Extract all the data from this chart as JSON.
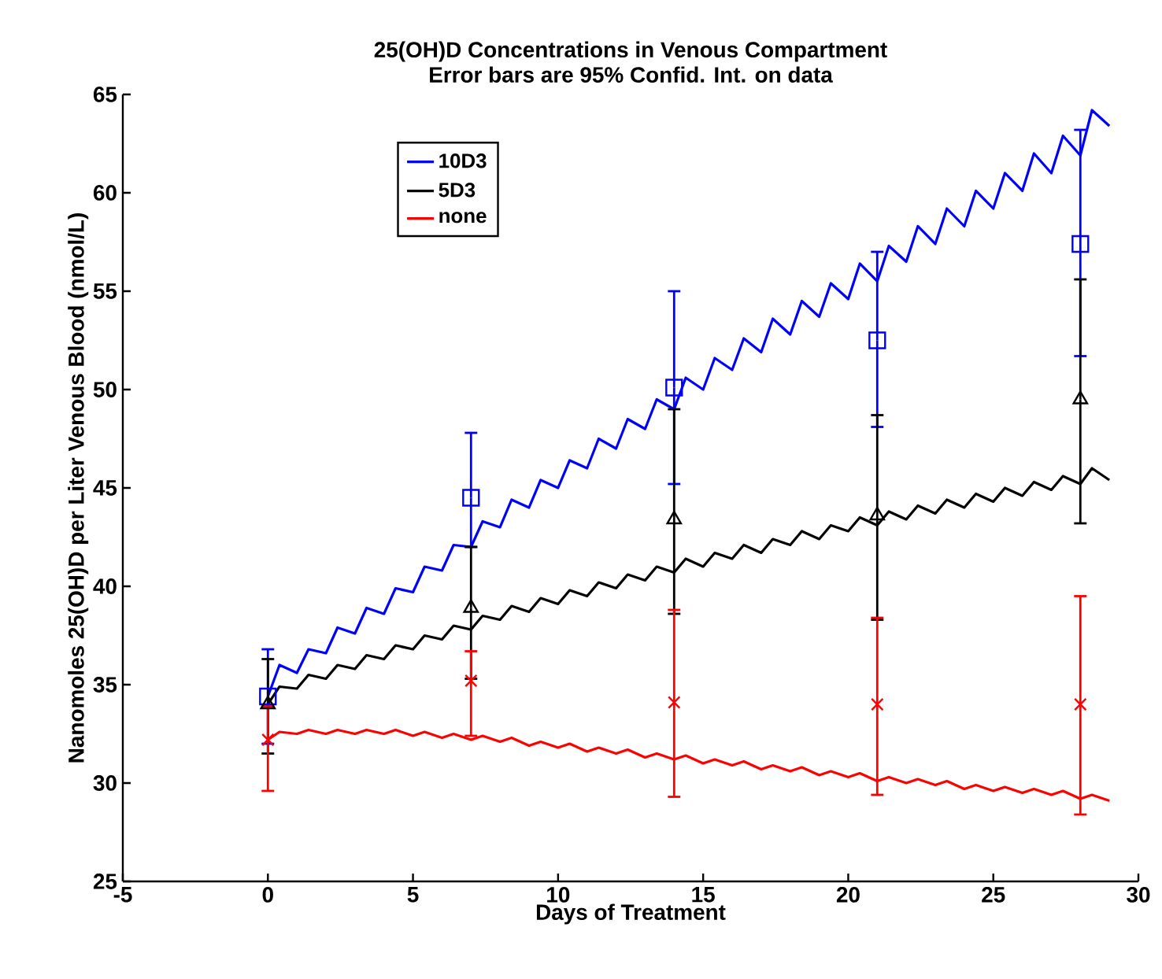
{
  "chart_data": {
    "type": "line",
    "title": "25(OH)D Concentrations in Venous Compartment",
    "subtitle": "Error bars are 95% Confid. Int. on data",
    "xlabel": "Days of Treatment",
    "ylabel": "Nanomoles 25(OH)D per Liter Venous Blood (nmol/L)",
    "xlim": [
      -5,
      30
    ],
    "xticks": [
      -5,
      0,
      5,
      10,
      15,
      20,
      25,
      30
    ],
    "ylim": [
      25,
      65
    ],
    "yticks": [
      25,
      30,
      35,
      40,
      45,
      50,
      55,
      60,
      65
    ],
    "grid": false,
    "legend": "top left",
    "line_style": "solid",
    "series": [
      {
        "name": "10D3",
        "color": "#0000ff",
        "x": [
          0,
          0.4,
          1,
          1.4,
          2,
          2.4,
          3,
          3.4,
          4,
          4.4,
          5,
          5.4,
          6,
          6.4,
          7,
          7.4,
          8,
          8.4,
          9,
          9.4,
          10,
          10.4,
          11,
          11.4,
          12,
          12.4,
          13,
          13.4,
          14,
          14.4,
          15,
          15.4,
          16,
          16.4,
          17,
          17.4,
          18,
          18.4,
          19,
          19.4,
          20,
          20.4,
          21,
          21.4,
          22,
          22.4,
          23,
          23.4,
          24,
          24.4,
          25,
          25.4,
          26,
          26.4,
          27,
          27.4,
          28,
          28.4,
          29
        ],
        "values": [
          34.4,
          36.0,
          35.6,
          36.8,
          36.6,
          37.9,
          37.6,
          38.9,
          38.6,
          39.9,
          39.7,
          41.0,
          40.8,
          42.1,
          42.0,
          43.3,
          43.0,
          44.4,
          44.0,
          45.4,
          45.0,
          46.4,
          46.0,
          47.5,
          47.0,
          48.5,
          48.0,
          49.5,
          49.0,
          50.6,
          50.0,
          51.6,
          51.0,
          52.6,
          51.9,
          53.6,
          52.8,
          54.5,
          53.7,
          55.4,
          54.6,
          56.4,
          55.5,
          57.3,
          56.5,
          58.3,
          57.4,
          59.2,
          58.3,
          60.1,
          59.2,
          61.0,
          60.1,
          62.0,
          61.0,
          62.9,
          61.9,
          64.2,
          63.4
        ]
      },
      {
        "name": "5D3",
        "color": "#000000",
        "x": [
          0,
          0.4,
          1,
          1.4,
          2,
          2.4,
          3,
          3.4,
          4,
          4.4,
          5,
          5.4,
          6,
          6.4,
          7,
          7.4,
          8,
          8.4,
          9,
          9.4,
          10,
          10.4,
          11,
          11.4,
          12,
          12.4,
          13,
          13.4,
          14,
          14.4,
          15,
          15.4,
          16,
          16.4,
          17,
          17.4,
          18,
          18.4,
          19,
          19.4,
          20,
          20.4,
          21,
          21.4,
          22,
          22.4,
          23,
          23.4,
          24,
          24.4,
          25,
          25.4,
          26,
          26.4,
          27,
          27.4,
          28,
          28.4,
          29
        ],
        "values": [
          34.0,
          34.9,
          34.8,
          35.5,
          35.3,
          36.0,
          35.8,
          36.5,
          36.3,
          37.0,
          36.8,
          37.5,
          37.3,
          38.0,
          37.8,
          38.5,
          38.3,
          39.0,
          38.7,
          39.4,
          39.1,
          39.8,
          39.5,
          40.2,
          39.9,
          40.6,
          40.3,
          41.0,
          40.7,
          41.4,
          41.0,
          41.7,
          41.4,
          42.1,
          41.7,
          42.4,
          42.1,
          42.8,
          42.4,
          43.1,
          42.8,
          43.5,
          43.1,
          43.8,
          43.4,
          44.1,
          43.7,
          44.4,
          44.0,
          44.7,
          44.3,
          45.0,
          44.6,
          45.3,
          44.9,
          45.6,
          45.2,
          46.0,
          45.4
        ]
      },
      {
        "name": "none",
        "color": "#ff0000",
        "x": [
          0,
          0.4,
          1,
          1.4,
          2,
          2.4,
          3,
          3.4,
          4,
          4.4,
          5,
          5.4,
          6,
          6.4,
          7,
          7.4,
          8,
          8.4,
          9,
          9.4,
          10,
          10.4,
          11,
          11.4,
          12,
          12.4,
          13,
          13.4,
          14,
          14.4,
          15,
          15.4,
          16,
          16.4,
          17,
          17.4,
          18,
          18.4,
          19,
          19.4,
          20,
          20.4,
          21,
          21.4,
          22,
          22.4,
          23,
          23.4,
          24,
          24.4,
          25,
          25.4,
          26,
          26.4,
          27,
          27.4,
          28,
          28.4,
          29
        ],
        "values": [
          32.2,
          32.6,
          32.5,
          32.7,
          32.5,
          32.7,
          32.5,
          32.7,
          32.5,
          32.7,
          32.4,
          32.6,
          32.3,
          32.5,
          32.2,
          32.4,
          32.1,
          32.3,
          31.9,
          32.1,
          31.8,
          32.0,
          31.6,
          31.8,
          31.5,
          31.7,
          31.3,
          31.5,
          31.2,
          31.4,
          31.0,
          31.2,
          30.9,
          31.1,
          30.7,
          30.9,
          30.6,
          30.8,
          30.4,
          30.6,
          30.3,
          30.5,
          30.1,
          30.3,
          30.0,
          30.2,
          29.9,
          30.1,
          29.7,
          29.9,
          29.6,
          29.8,
          29.5,
          29.7,
          29.4,
          29.6,
          29.2,
          29.4,
          29.1
        ]
      },
      {
        "type": "scatter",
        "color": "#0000ff",
        "marker": "square",
        "x": [
          0,
          7,
          14,
          21,
          28
        ],
        "values": [
          34.4,
          44.5,
          50.1,
          52.5,
          57.4
        ],
        "errors": [
          [
            32.0,
            36.8
          ],
          [
            42.0,
            47.8
          ],
          [
            45.2,
            55.0
          ],
          [
            48.1,
            57.0
          ],
          [
            51.7,
            63.2
          ]
        ]
      },
      {
        "type": "scatter",
        "color": "#000000",
        "marker": "triangle",
        "x": [
          0,
          7,
          14,
          21,
          28
        ],
        "values": [
          34.0,
          38.9,
          43.4,
          43.6,
          49.5
        ],
        "errors": [
          [
            31.5,
            36.3
          ],
          [
            35.3,
            42.0
          ],
          [
            38.6,
            49.0
          ],
          [
            38.3,
            48.7
          ],
          [
            43.2,
            55.6
          ]
        ]
      },
      {
        "type": "scatter",
        "color": "#ff0000",
        "marker": "cross",
        "x": [
          0,
          7,
          14,
          21,
          28
        ],
        "values": [
          32.2,
          35.2,
          34.1,
          34.0,
          34.0
        ],
        "errors": [
          [
            29.6,
            33.9
          ],
          [
            32.4,
            36.7
          ],
          [
            29.3,
            38.8
          ],
          [
            29.4,
            38.4
          ],
          [
            28.4,
            39.5
          ]
        ]
      }
    ]
  }
}
